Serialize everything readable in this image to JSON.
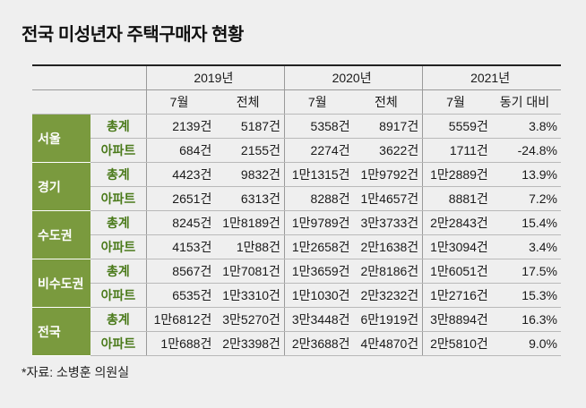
{
  "title": "전국 미성년자 주택구매자 현황",
  "years": [
    "2019년",
    "2020년",
    "2021년"
  ],
  "subheaders": [
    "7월",
    "전체",
    "7월",
    "전체",
    "7월",
    "동기 대비"
  ],
  "regions": [
    {
      "name": "서울",
      "rows": [
        {
          "type": "총계",
          "values": [
            "2139건",
            "5187건",
            "5358건",
            "8917건",
            "5559건",
            "3.8%"
          ]
        },
        {
          "type": "아파트",
          "values": [
            "684건",
            "2155건",
            "2274건",
            "3622건",
            "1711건",
            "-24.8%"
          ]
        }
      ]
    },
    {
      "name": "경기",
      "rows": [
        {
          "type": "총계",
          "values": [
            "4423건",
            "9832건",
            "1만1315건",
            "1만9792건",
            "1만2889건",
            "13.9%"
          ]
        },
        {
          "type": "아파트",
          "values": [
            "2651건",
            "6313건",
            "8288건",
            "1만4657건",
            "8881건",
            "7.2%"
          ]
        }
      ]
    },
    {
      "name": "수도권",
      "rows": [
        {
          "type": "총계",
          "values": [
            "8245건",
            "1만8189건",
            "1만9789건",
            "3만3733건",
            "2만2843건",
            "15.4%"
          ]
        },
        {
          "type": "아파트",
          "values": [
            "4153건",
            "1만88건",
            "1만2658건",
            "2만1638건",
            "1만3094건",
            "3.4%"
          ]
        }
      ]
    },
    {
      "name": "비수도권",
      "rows": [
        {
          "type": "총계",
          "values": [
            "8567건",
            "1만7081건",
            "1만3659건",
            "2만8186건",
            "1만6051건",
            "17.5%"
          ]
        },
        {
          "type": "아파트",
          "values": [
            "6535건",
            "1만3310건",
            "1만1030건",
            "2만3232건",
            "1만2716건",
            "15.3%"
          ]
        }
      ]
    },
    {
      "name": "전국",
      "rows": [
        {
          "type": "총계",
          "values": [
            "1만6812건",
            "3만5270건",
            "3만3448건",
            "6만1919건",
            "3만8894건",
            "16.3%"
          ]
        },
        {
          "type": "아파트",
          "values": [
            "1만688건",
            "2만3398건",
            "2만3688건",
            "4만4870건",
            "2만5810건",
            "9.0%"
          ]
        }
      ]
    }
  ],
  "footnote": "*자료: 소병훈 의원실"
}
